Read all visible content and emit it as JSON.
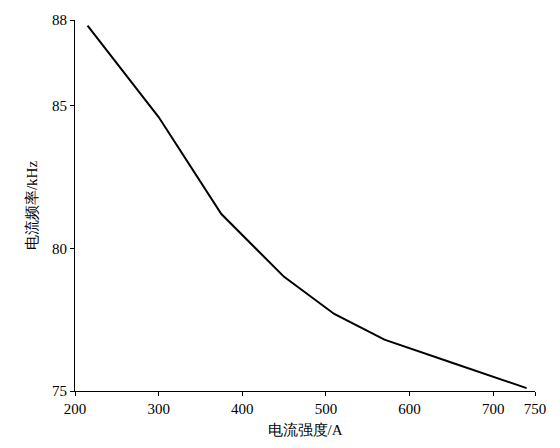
{
  "chart_data": {
    "type": "line",
    "x_label": "电流强度/A",
    "y_label": "电流频率/kHz",
    "x": [
      215,
      300,
      375,
      450,
      510,
      570,
      650,
      700,
      740
    ],
    "values": [
      87.8,
      84.6,
      81.2,
      79.0,
      77.7,
      76.8,
      76.0,
      75.5,
      75.1
    ],
    "color": "#000000",
    "xlim": [
      200,
      750
    ],
    "xticks": [
      200,
      300,
      400,
      500,
      600,
      700,
      750
    ],
    "ylim": [
      75,
      88
    ],
    "yticks": [
      75,
      80,
      85,
      88
    ],
    "grid": false
  }
}
